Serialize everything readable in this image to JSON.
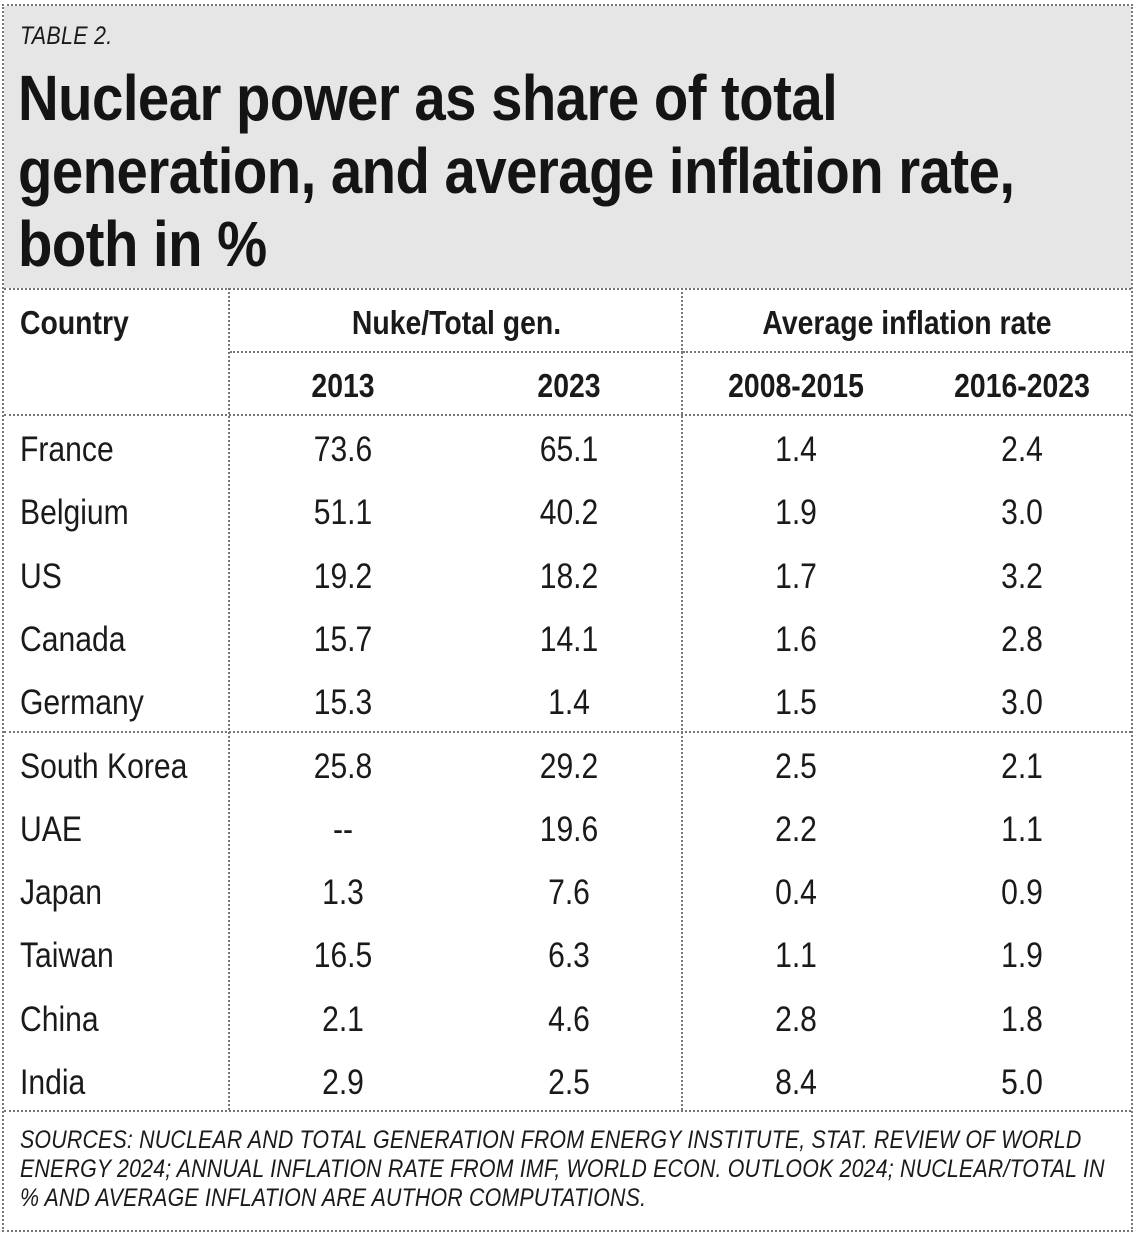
{
  "table_label": "TABLE 2.",
  "title": "Nuclear power as share of total generation, and average inflation rate, both in %",
  "header": {
    "country": "Country",
    "group_nuke": "Nuke/Total gen.",
    "group_inflation": "Average inflation rate",
    "col_2013": "2013",
    "col_2023": "2023",
    "col_2008_2015": "2008-2015",
    "col_2016_2023": "2016-2023"
  },
  "rows": [
    {
      "country": "France",
      "nuke_2013": "73.6",
      "nuke_2023": "65.1",
      "infl_2008_2015": "1.4",
      "infl_2016_2023": "2.4"
    },
    {
      "country": "Belgium",
      "nuke_2013": "51.1",
      "nuke_2023": "40.2",
      "infl_2008_2015": "1.9",
      "infl_2016_2023": "3.0"
    },
    {
      "country": "US",
      "nuke_2013": "19.2",
      "nuke_2023": "18.2",
      "infl_2008_2015": "1.7",
      "infl_2016_2023": "3.2"
    },
    {
      "country": "Canada",
      "nuke_2013": "15.7",
      "nuke_2023": "14.1",
      "infl_2008_2015": "1.6",
      "infl_2016_2023": "2.8"
    },
    {
      "country": "Germany",
      "nuke_2013": "15.3",
      "nuke_2023": "1.4",
      "infl_2008_2015": "1.5",
      "infl_2016_2023": "3.0"
    },
    {
      "country": "South Korea",
      "nuke_2013": "25.8",
      "nuke_2023": "29.2",
      "infl_2008_2015": "2.5",
      "infl_2016_2023": "2.1"
    },
    {
      "country": "UAE",
      "nuke_2013": "--",
      "nuke_2023": "19.6",
      "infl_2008_2015": "2.2",
      "infl_2016_2023": "1.1"
    },
    {
      "country": "Japan",
      "nuke_2013": "1.3",
      "nuke_2023": "7.6",
      "infl_2008_2015": "0.4",
      "infl_2016_2023": "0.9"
    },
    {
      "country": "Taiwan",
      "nuke_2013": "16.5",
      "nuke_2023": "6.3",
      "infl_2008_2015": "1.1",
      "infl_2016_2023": "1.9"
    },
    {
      "country": "China",
      "nuke_2013": "2.1",
      "nuke_2023": "4.6",
      "infl_2008_2015": "2.8",
      "infl_2016_2023": "1.8"
    },
    {
      "country": "India",
      "nuke_2013": "2.9",
      "nuke_2023": "2.5",
      "infl_2008_2015": "8.4",
      "infl_2016_2023": "5.0"
    }
  ],
  "sources": "SOURCES: NUCLEAR AND TOTAL GENERATION FROM ENERGY INSTITUTE, STAT. REVIEW OF WORLD ENERGY 2024; ANNUAL INFLATION RATE FROM IMF, WORLD ECON. OUTLOOK 2024; NUCLEAR/TOTAL IN % AND AVERAGE INFLATION ARE AUTHOR COMPUTATIONS."
}
